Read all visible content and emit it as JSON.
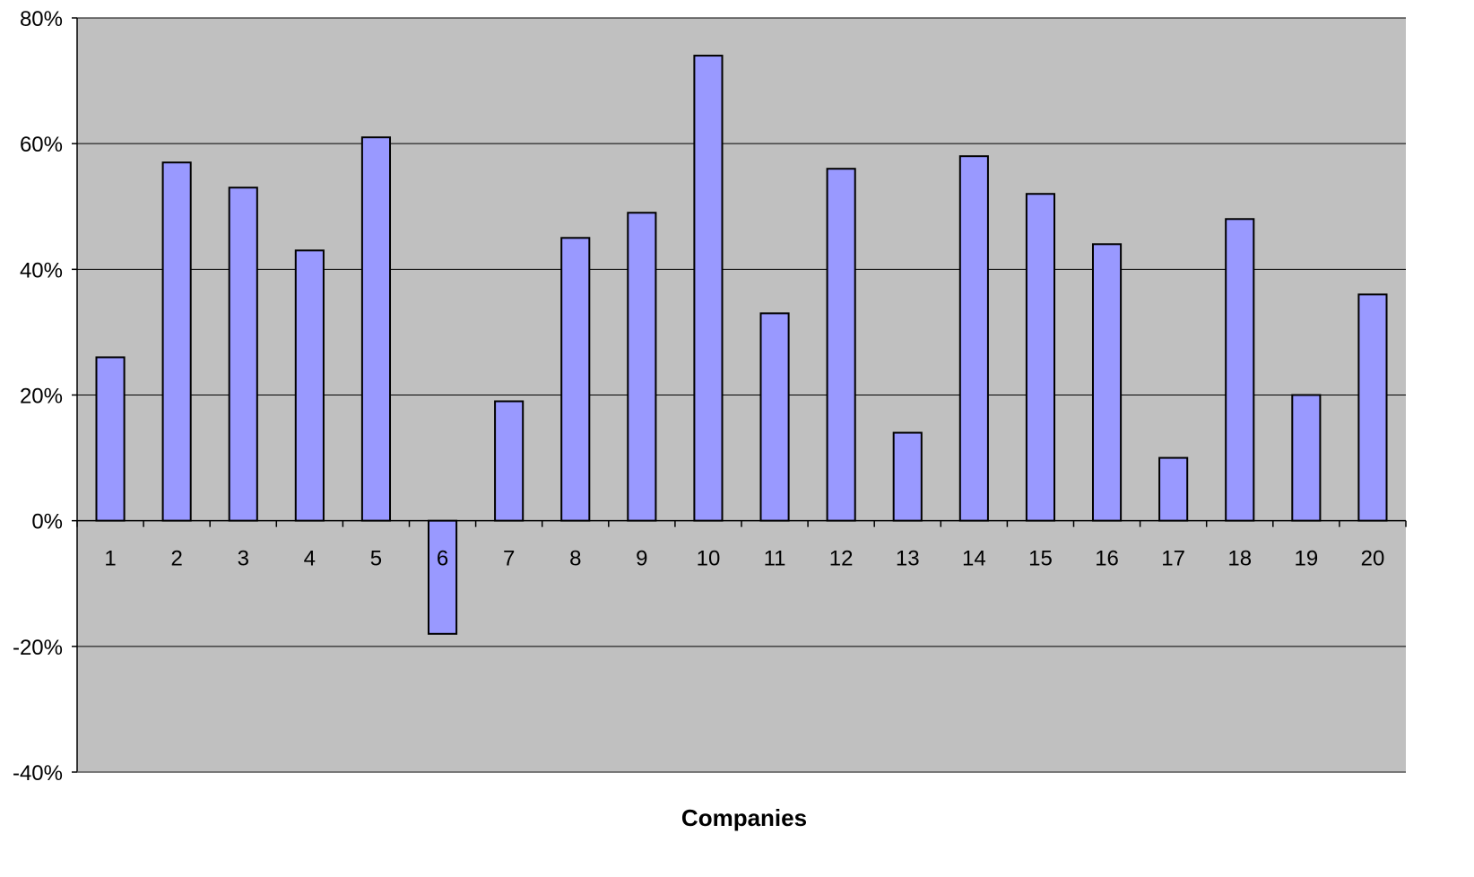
{
  "chart_data": {
    "type": "bar",
    "title": "",
    "xlabel": "Companies",
    "ylabel": "",
    "categories": [
      "1",
      "2",
      "3",
      "4",
      "5",
      "6",
      "7",
      "8",
      "9",
      "10",
      "11",
      "12",
      "13",
      "14",
      "15",
      "16",
      "17",
      "18",
      "19",
      "20"
    ],
    "values": [
      26,
      57,
      53,
      43,
      61,
      -18,
      19,
      45,
      49,
      74,
      33,
      56,
      14,
      58,
      52,
      44,
      10,
      48,
      20,
      36
    ],
    "value_unit": "%",
    "ylim": [
      -40,
      80
    ],
    "yticks": [
      -40,
      -20,
      0,
      20,
      40,
      60,
      80
    ],
    "ytick_labels": [
      "-40%",
      "-20%",
      "0%",
      "20%",
      "40%",
      "60%",
      "80%"
    ],
    "grid": true,
    "legend": "none",
    "colors": {
      "plot_background": "#c0c0c0",
      "bar_fill": "#9999ff",
      "bar_stroke": "#000000",
      "gridline": "#000000"
    }
  }
}
